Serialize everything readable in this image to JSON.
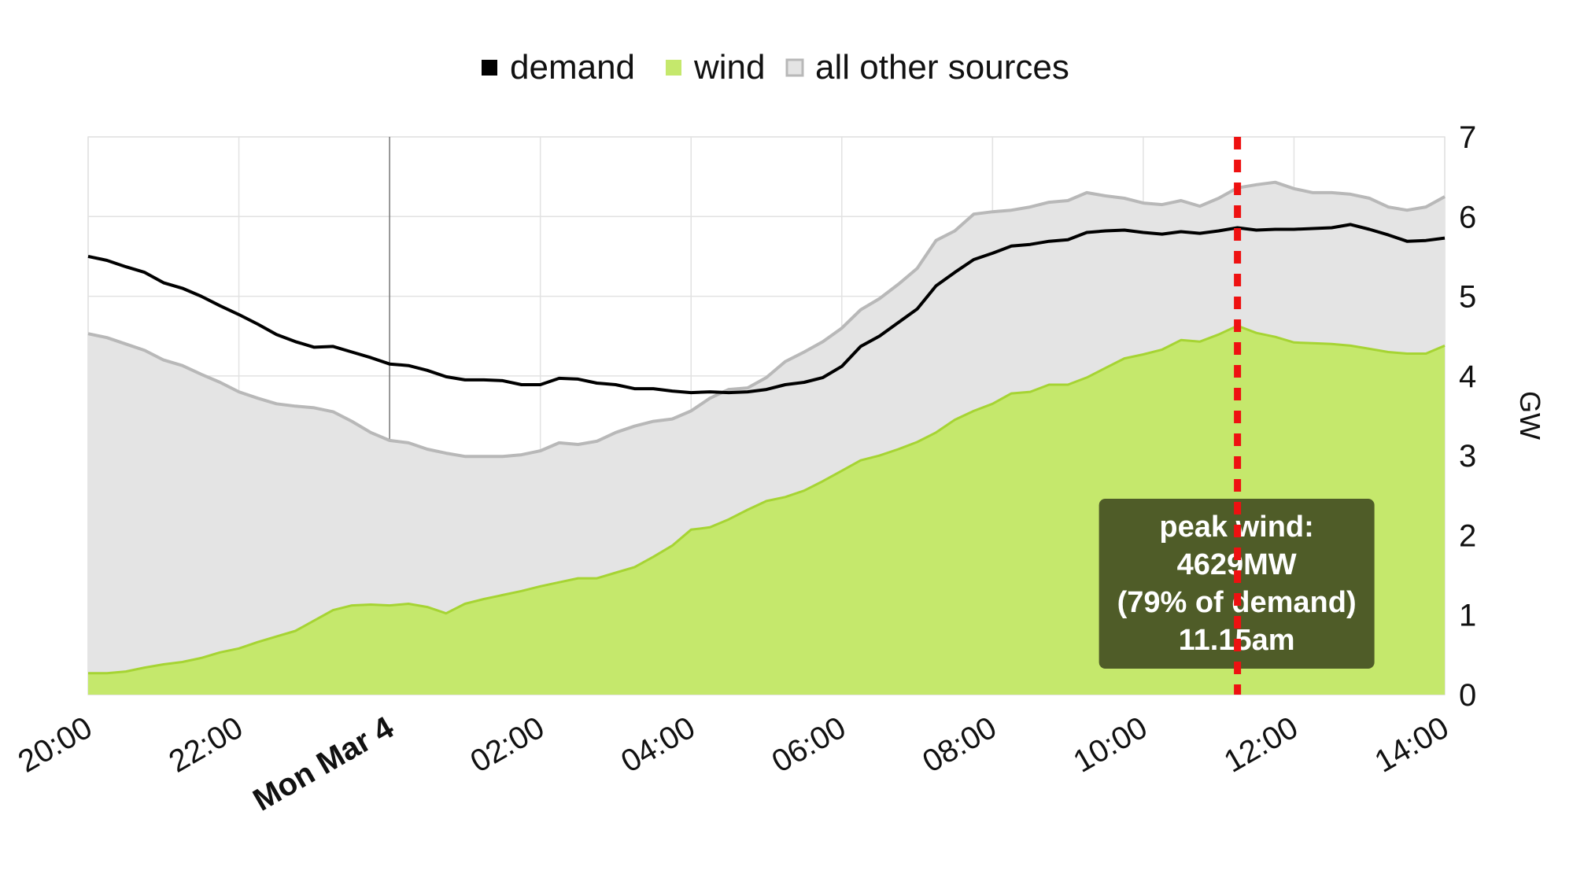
{
  "chart_data": {
    "type": "area",
    "ylabel": "GW",
    "ylim": [
      0,
      7
    ],
    "yticks": [
      "0",
      "1",
      "2",
      "3",
      "4",
      "5",
      "6",
      "7"
    ],
    "x_start": "20:00",
    "x_step_minutes": 15,
    "xticks": [
      {
        "label": "20:00",
        "hours_from_start": 0,
        "bold": false
      },
      {
        "label": "22:00",
        "hours_from_start": 2,
        "bold": false
      },
      {
        "label": "Mon Mar 4",
        "hours_from_start": 4,
        "bold": true
      },
      {
        "label": "02:00",
        "hours_from_start": 6,
        "bold": false
      },
      {
        "label": "04:00",
        "hours_from_start": 8,
        "bold": false
      },
      {
        "label": "06:00",
        "hours_from_start": 10,
        "bold": false
      },
      {
        "label": "08:00",
        "hours_from_start": 12,
        "bold": false
      },
      {
        "label": "10:00",
        "hours_from_start": 14,
        "bold": false
      },
      {
        "label": "12:00",
        "hours_from_start": 16,
        "bold": false
      },
      {
        "label": "14:00",
        "hours_from_start": 18,
        "bold": false
      }
    ],
    "legend": [
      {
        "name": "demand",
        "color": "#000000"
      },
      {
        "name": "wind",
        "color": "#c5e86c"
      },
      {
        "name": "all other sources",
        "color": "#c8c8c8"
      }
    ],
    "legend_position": "top-center",
    "grid": true,
    "series": [
      {
        "name": "demand",
        "kind": "line",
        "color": "#000000",
        "values": [
          5.5,
          5.45,
          5.37,
          5.3,
          5.17,
          5.1,
          5.0,
          4.88,
          4.77,
          4.65,
          4.52,
          4.43,
          4.36,
          4.37,
          4.3,
          4.23,
          4.15,
          4.13,
          4.07,
          3.99,
          3.95,
          3.95,
          3.94,
          3.89,
          3.89,
          3.97,
          3.96,
          3.91,
          3.89,
          3.84,
          3.84,
          3.81,
          3.79,
          3.8,
          3.79,
          3.8,
          3.83,
          3.89,
          3.92,
          3.98,
          4.12,
          4.37,
          4.5,
          4.67,
          4.84,
          5.13,
          5.3,
          5.46,
          5.54,
          5.63,
          5.65,
          5.69,
          5.71,
          5.8,
          5.82,
          5.83,
          5.8,
          5.78,
          5.81,
          5.79,
          5.82,
          5.86,
          5.83,
          5.84,
          5.84,
          5.85,
          5.86,
          5.9,
          5.84,
          5.77,
          5.69,
          5.7,
          5.73
        ]
      },
      {
        "name": "wind",
        "kind": "area",
        "color": "#c5e86c",
        "line_color": "#a6d433",
        "values": [
          0.27,
          0.27,
          0.29,
          0.34,
          0.38,
          0.41,
          0.46,
          0.53,
          0.58,
          0.66,
          0.73,
          0.8,
          0.93,
          1.06,
          1.12,
          1.13,
          1.12,
          1.14,
          1.1,
          1.02,
          1.14,
          1.2,
          1.25,
          1.3,
          1.36,
          1.41,
          1.46,
          1.46,
          1.53,
          1.6,
          1.73,
          1.87,
          2.07,
          2.1,
          2.2,
          2.32,
          2.43,
          2.48,
          2.56,
          2.68,
          2.81,
          2.94,
          3.0,
          3.08,
          3.17,
          3.29,
          3.45,
          3.56,
          3.65,
          3.78,
          3.8,
          3.89,
          3.89,
          3.98,
          4.1,
          4.22,
          4.27,
          4.33,
          4.45,
          4.43,
          4.52,
          4.629,
          4.54,
          4.49,
          4.42,
          4.41,
          4.4,
          4.38,
          4.34,
          4.3,
          4.28,
          4.28,
          4.38
        ]
      },
      {
        "name": "all other sources",
        "kind": "area",
        "color": "#e4e4e4",
        "line_color": "#b8b8b8",
        "values": [
          4.53,
          4.48,
          4.4,
          4.32,
          4.2,
          4.13,
          4.02,
          3.92,
          3.8,
          3.72,
          3.65,
          3.62,
          3.6,
          3.55,
          3.43,
          3.29,
          3.19,
          3.16,
          3.08,
          3.03,
          2.99,
          2.99,
          2.99,
          3.01,
          3.06,
          3.16,
          3.14,
          3.18,
          3.29,
          3.37,
          3.43,
          3.46,
          3.56,
          3.72,
          3.83,
          3.85,
          3.98,
          4.18,
          4.3,
          4.43,
          4.6,
          4.83,
          4.97,
          5.15,
          5.35,
          5.7,
          5.82,
          6.03,
          6.06,
          6.08,
          6.12,
          6.18,
          6.2,
          6.3,
          6.26,
          6.23,
          6.17,
          6.15,
          6.2,
          6.13,
          6.23,
          6.36,
          6.4,
          6.43,
          6.35,
          6.3,
          6.3,
          6.28,
          6.23,
          6.12,
          6.08,
          6.12,
          6.25
        ]
      }
    ],
    "annotation": {
      "marker": "peak wind",
      "time": "11.15am",
      "value_mw": 4629,
      "pct_of_demand": 79,
      "line_color": "#ee1111",
      "box_color": "#4f5c28",
      "text_lines": [
        "peak wind:",
        "4629MW",
        "(79% of demand)",
        "11.15am"
      ]
    }
  }
}
